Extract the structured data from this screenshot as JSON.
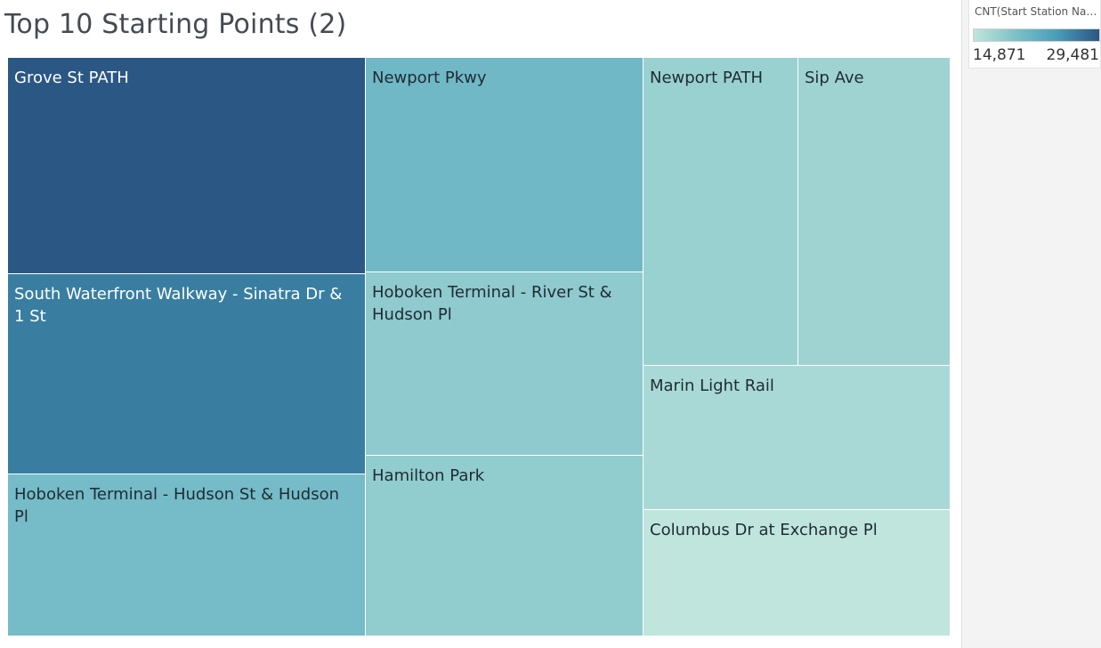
{
  "title": "Top 10 Starting Points (2)",
  "legend": {
    "title": "CNT(Start Station Nam...",
    "min_label": "14,871",
    "max_label": "29,481",
    "color_low": "#bfe5dc",
    "color_high": "#2b5784"
  },
  "chart_data": {
    "type": "treemap",
    "title": "Top 10 Starting Points (2)",
    "measure": "CNT(Start Station Nam...",
    "color_range": [
      14871,
      29481
    ],
    "nodes": [
      {
        "label": "Grove St PATH",
        "value": 29481
      },
      {
        "label": "South Waterfront Walkway - Sinatra Dr & 1 St",
        "value": 27300
      },
      {
        "label": "Hoboken Terminal - Hudson St & Hudson Pl",
        "value": 22100
      },
      {
        "label": "Newport Pkwy",
        "value": 22700
      },
      {
        "label": "Hoboken Terminal - River St & Hudson Pl",
        "value": 19400
      },
      {
        "label": "Hamilton Park",
        "value": 19100
      },
      {
        "label": "Newport PATH",
        "value": 18300
      },
      {
        "label": "Sip Ave",
        "value": 17900
      },
      {
        "label": "Marin Light Rail",
        "value": 16900
      },
      {
        "label": "Columbus Dr at Exchange Pl",
        "value": 14871
      }
    ]
  }
}
